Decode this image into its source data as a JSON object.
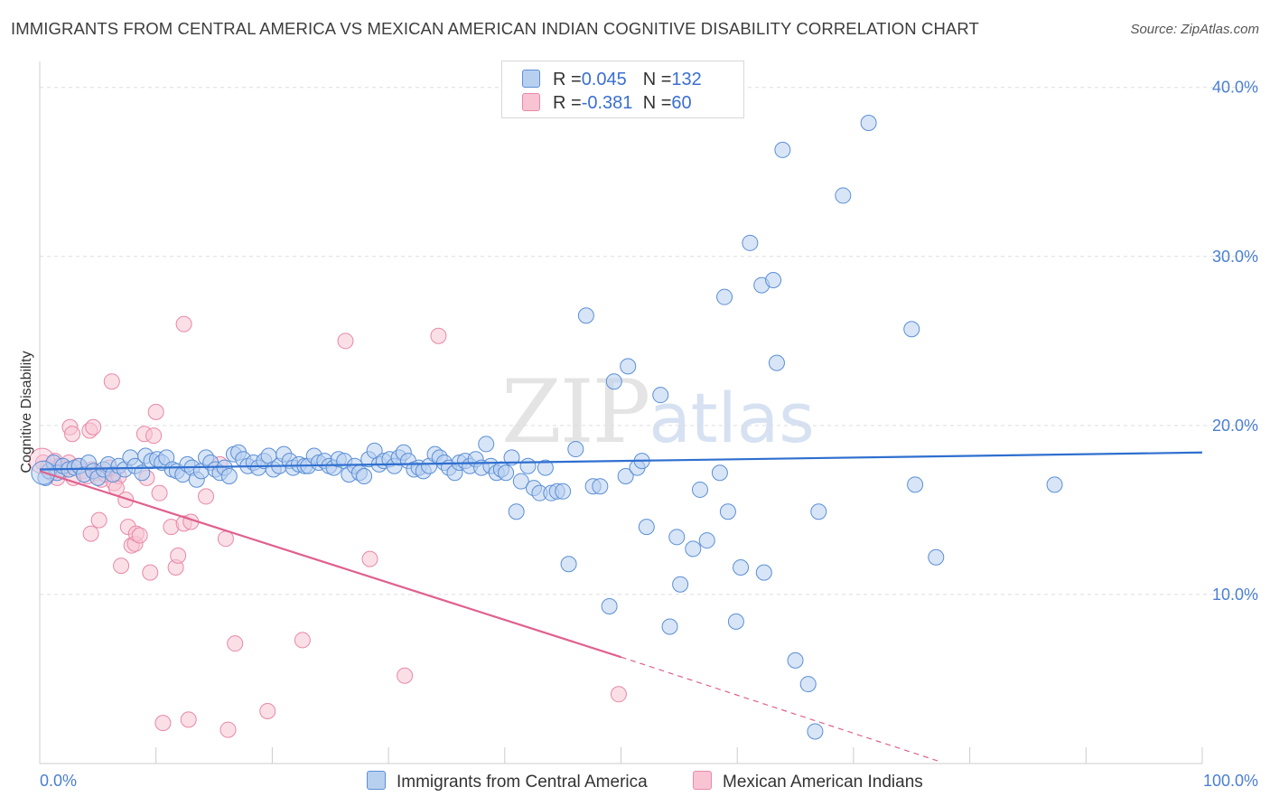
{
  "title": "IMMIGRANTS FROM CENTRAL AMERICA VS MEXICAN AMERICAN INDIAN COGNITIVE DISABILITY CORRELATION CHART",
  "source": "Source: ZipAtlas.com",
  "watermark": {
    "zip": "ZIP",
    "atlas": "atlas"
  },
  "legend": {
    "row1": {
      "r_label": "R = ",
      "r_value": "0.045",
      "n_label": "N = ",
      "n_value": "132"
    },
    "row2": {
      "r_label": "R = ",
      "r_value": "-0.381",
      "n_label": "N = ",
      "n_value": "60"
    }
  },
  "colors": {
    "blue_fill": "#b8d0f0",
    "blue_stroke": "#5b8fd6",
    "blue_line": "#2f6fcf",
    "pink_fill": "#f8c4d4",
    "pink_stroke": "#e888a8",
    "pink_line": "#e0608e",
    "tick": "#4a7fd0",
    "grid": "#dddddd"
  },
  "chart_data": {
    "type": "scatter",
    "title": "IMMIGRANTS FROM CENTRAL AMERICA VS MEXICAN AMERICAN INDIAN COGNITIVE DISABILITY CORRELATION CHART",
    "xlabel": "",
    "ylabel": "Cognitive Disability",
    "xlim": [
      0,
      100
    ],
    "ylim": [
      0,
      41
    ],
    "x_tick_labels": [
      "0.0%",
      "100.0%"
    ],
    "y_ticks": [
      10,
      20,
      30,
      40
    ],
    "y_tick_labels": [
      "10.0%",
      "20.0%",
      "30.0%",
      "40.0%"
    ],
    "grid": true,
    "legend_position": "bottom",
    "series": [
      {
        "name": "Immigrants from Central America",
        "trend": {
          "x": [
            0,
            100
          ],
          "y": [
            17.4,
            18.4
          ]
        },
        "points": [
          [
            0.5,
            16.9
          ],
          [
            0.8,
            17.3
          ],
          [
            1.2,
            17.8
          ],
          [
            1.5,
            17.2
          ],
          [
            2.0,
            17.6
          ],
          [
            2.5,
            17.4
          ],
          [
            3.0,
            17.5
          ],
          [
            3.4,
            17.6
          ],
          [
            3.8,
            17.1
          ],
          [
            4.2,
            17.8
          ],
          [
            4.6,
            17.3
          ],
          [
            5.0,
            16.9
          ],
          [
            5.5,
            17.4
          ],
          [
            5.9,
            17.7
          ],
          [
            6.3,
            17.1
          ],
          [
            6.8,
            17.6
          ],
          [
            7.3,
            17.4
          ],
          [
            7.8,
            18.1
          ],
          [
            8.2,
            17.6
          ],
          [
            8.8,
            17.2
          ],
          [
            9.1,
            18.2
          ],
          [
            9.6,
            17.9
          ],
          [
            10.1,
            18.0
          ],
          [
            10.5,
            17.8
          ],
          [
            10.9,
            18.1
          ],
          [
            11.4,
            17.4
          ],
          [
            11.8,
            17.3
          ],
          [
            12.3,
            17.1
          ],
          [
            12.7,
            17.7
          ],
          [
            13.1,
            17.5
          ],
          [
            13.5,
            16.8
          ],
          [
            13.9,
            17.3
          ],
          [
            14.3,
            18.1
          ],
          [
            14.7,
            17.8
          ],
          [
            15.1,
            17.4
          ],
          [
            15.5,
            17.2
          ],
          [
            15.9,
            17.5
          ],
          [
            16.3,
            17.0
          ],
          [
            16.7,
            18.3
          ],
          [
            17.1,
            18.4
          ],
          [
            17.5,
            18.0
          ],
          [
            17.9,
            17.6
          ],
          [
            18.4,
            17.8
          ],
          [
            18.8,
            17.5
          ],
          [
            19.3,
            17.9
          ],
          [
            19.7,
            18.2
          ],
          [
            20.1,
            17.4
          ],
          [
            20.6,
            17.6
          ],
          [
            21.0,
            18.3
          ],
          [
            21.5,
            17.9
          ],
          [
            21.8,
            17.5
          ],
          [
            22.3,
            17.7
          ],
          [
            22.8,
            17.6
          ],
          [
            23.1,
            17.6
          ],
          [
            23.6,
            18.2
          ],
          [
            24.0,
            17.8
          ],
          [
            24.5,
            17.9
          ],
          [
            24.9,
            17.6
          ],
          [
            25.3,
            17.5
          ],
          [
            25.7,
            18.0
          ],
          [
            26.2,
            17.9
          ],
          [
            26.6,
            17.1
          ],
          [
            27.1,
            17.6
          ],
          [
            27.5,
            17.2
          ],
          [
            27.9,
            17.0
          ],
          [
            28.3,
            18.0
          ],
          [
            28.8,
            18.5
          ],
          [
            29.2,
            17.7
          ],
          [
            29.6,
            17.9
          ],
          [
            30.1,
            18.0
          ],
          [
            30.5,
            17.6
          ],
          [
            30.9,
            18.1
          ],
          [
            31.3,
            18.4
          ],
          [
            31.7,
            17.9
          ],
          [
            32.2,
            17.4
          ],
          [
            32.6,
            17.5
          ],
          [
            33.0,
            17.3
          ],
          [
            33.5,
            17.6
          ],
          [
            34.0,
            18.3
          ],
          [
            34.4,
            18.1
          ],
          [
            34.8,
            17.8
          ],
          [
            35.2,
            17.5
          ],
          [
            35.7,
            17.2
          ],
          [
            36.1,
            17.8
          ],
          [
            36.6,
            17.9
          ],
          [
            37.0,
            17.6
          ],
          [
            37.5,
            18.0
          ],
          [
            38.0,
            17.5
          ],
          [
            38.4,
            18.9
          ],
          [
            38.8,
            17.6
          ],
          [
            39.3,
            17.2
          ],
          [
            39.7,
            17.4
          ],
          [
            40.1,
            17.2
          ],
          [
            40.6,
            18.1
          ],
          [
            41.0,
            14.9
          ],
          [
            41.4,
            16.7
          ],
          [
            42.0,
            17.6
          ],
          [
            42.5,
            16.3
          ],
          [
            43.0,
            16.0
          ],
          [
            43.5,
            17.5
          ],
          [
            44.0,
            16.0
          ],
          [
            44.5,
            16.1
          ],
          [
            45.0,
            16.1
          ],
          [
            45.5,
            11.8
          ],
          [
            46.1,
            18.6
          ],
          [
            47.0,
            26.5
          ],
          [
            47.6,
            16.4
          ],
          [
            48.2,
            16.4
          ],
          [
            49.0,
            9.3
          ],
          [
            49.4,
            22.6
          ],
          [
            50.4,
            17.0
          ],
          [
            50.6,
            23.5
          ],
          [
            51.4,
            17.5
          ],
          [
            51.8,
            17.9
          ],
          [
            52.2,
            14.0
          ],
          [
            53.4,
            21.8
          ],
          [
            54.2,
            8.1
          ],
          [
            54.8,
            13.4
          ],
          [
            55.1,
            10.6
          ],
          [
            56.2,
            12.7
          ],
          [
            56.8,
            16.2
          ],
          [
            57.4,
            13.2
          ],
          [
            58.5,
            17.2
          ],
          [
            58.9,
            27.6
          ],
          [
            59.2,
            14.9
          ],
          [
            59.9,
            8.4
          ],
          [
            60.3,
            11.6
          ],
          [
            61.1,
            30.8
          ],
          [
            62.1,
            28.3
          ],
          [
            62.3,
            11.3
          ],
          [
            63.1,
            28.6
          ],
          [
            63.4,
            23.7
          ],
          [
            63.9,
            36.3
          ],
          [
            65.0,
            6.1
          ],
          [
            66.1,
            4.7
          ],
          [
            66.7,
            1.9
          ],
          [
            67.0,
            14.9
          ],
          [
            69.1,
            33.6
          ],
          [
            71.3,
            37.9
          ],
          [
            75.0,
            25.7
          ],
          [
            75.3,
            16.5
          ],
          [
            77.1,
            12.2
          ],
          [
            87.3,
            16.5
          ]
        ]
      },
      {
        "name": "Mexican American Indians",
        "trend": {
          "x": [
            0,
            50
          ],
          "y": [
            17.3,
            6.3
          ]
        },
        "trend_extension": {
          "x": [
            50,
            77.5
          ],
          "y": [
            6.3,
            0.1
          ]
        },
        "points": [
          [
            0.3,
            17.8
          ],
          [
            0.7,
            17.5
          ],
          [
            1.0,
            17.2
          ],
          [
            1.3,
            17.9
          ],
          [
            1.7,
            17.6
          ],
          [
            2.1,
            17.4
          ],
          [
            2.5,
            17.8
          ],
          [
            2.9,
            16.9
          ],
          [
            3.3,
            17.6
          ],
          [
            3.7,
            17.3
          ],
          [
            4.1,
            17.0
          ],
          [
            4.5,
            17.4
          ],
          [
            4.9,
            17.2
          ],
          [
            5.3,
            16.8
          ],
          [
            5.7,
            17.1
          ],
          [
            6.0,
            17.5
          ],
          [
            6.4,
            16.6
          ],
          [
            6.8,
            17.0
          ],
          [
            2.6,
            19.9
          ],
          [
            2.8,
            19.5
          ],
          [
            4.3,
            19.7
          ],
          [
            4.6,
            19.9
          ],
          [
            6.2,
            22.6
          ],
          [
            9.0,
            19.5
          ],
          [
            9.8,
            19.4
          ],
          [
            10.0,
            20.8
          ],
          [
            12.4,
            26.0
          ],
          [
            26.3,
            25.0
          ],
          [
            34.3,
            25.3
          ],
          [
            4.4,
            13.6
          ],
          [
            5.1,
            14.4
          ],
          [
            6.6,
            16.3
          ],
          [
            7.0,
            11.7
          ],
          [
            7.4,
            15.6
          ],
          [
            7.6,
            14.0
          ],
          [
            7.9,
            12.9
          ],
          [
            8.2,
            13.0
          ],
          [
            8.3,
            13.6
          ],
          [
            8.6,
            13.5
          ],
          [
            9.2,
            16.9
          ],
          [
            9.5,
            11.3
          ],
          [
            10.3,
            16.0
          ],
          [
            11.3,
            14.0
          ],
          [
            11.7,
            11.6
          ],
          [
            11.9,
            12.3
          ],
          [
            12.4,
            14.2
          ],
          [
            13.0,
            14.3
          ],
          [
            14.3,
            15.8
          ],
          [
            15.5,
            17.7
          ],
          [
            16.0,
            13.3
          ],
          [
            16.8,
            7.1
          ],
          [
            22.6,
            7.3
          ],
          [
            28.4,
            12.1
          ],
          [
            31.4,
            5.2
          ],
          [
            49.8,
            4.1
          ],
          [
            10.6,
            2.4
          ],
          [
            12.8,
            2.6
          ],
          [
            16.2,
            2.0
          ],
          [
            19.6,
            3.1
          ],
          [
            1.5,
            16.9
          ]
        ]
      }
    ]
  }
}
